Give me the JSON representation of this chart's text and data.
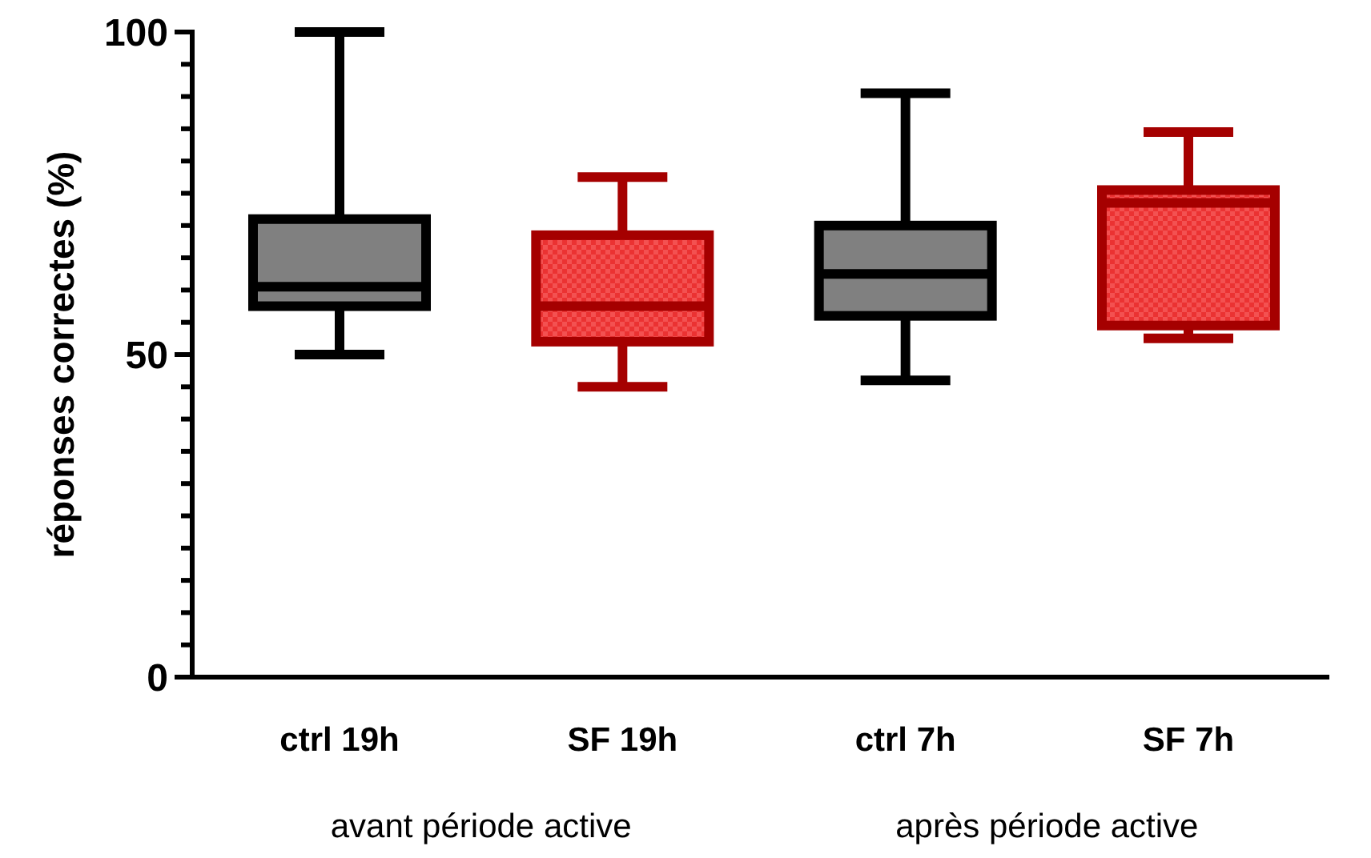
{
  "chart_data": {
    "type": "box",
    "ylabel": "réponses correctes (%)",
    "categories": [
      "ctrl 19h",
      "SF 19h",
      "ctrl 7h",
      "SF 7h"
    ],
    "boxes": [
      {
        "low": 50,
        "q1": 57.5,
        "median": 60.5,
        "q3": 71,
        "high": 100
      },
      {
        "low": 45,
        "q1": 52,
        "median": 57.5,
        "q3": 68.5,
        "high": 77.5
      },
      {
        "low": 46,
        "q1": 56,
        "median": 62.5,
        "q3": 70,
        "high": 90.5
      },
      {
        "low": 52.5,
        "q1": 54.5,
        "median": 73.5,
        "q3": 75.5,
        "high": 84.5
      }
    ],
    "colors": [
      "#000000",
      "#a50000",
      "#000000",
      "#a50000"
    ],
    "ylim": [
      0,
      100
    ],
    "yticks": [
      0,
      {
        "value": 5,
        "label": null
      },
      {
        "value": 10,
        "label": null
      },
      {
        "value": 15,
        "label": null
      },
      {
        "value": 20,
        "label": null
      },
      {
        "value": 25,
        "label": null
      },
      {
        "value": 30,
        "label": null
      },
      {
        "value": 35,
        "label": null
      },
      {
        "value": 40,
        "label": null
      },
      {
        "value": 45,
        "label": null
      },
      50,
      {
        "value": 55,
        "label": null
      },
      {
        "value": 60,
        "label": null
      },
      {
        "value": 65,
        "label": null
      },
      {
        "value": 70,
        "label": null
      },
      {
        "value": 75,
        "label": null
      },
      {
        "value": 80,
        "label": null
      },
      {
        "value": 85,
        "label": null
      },
      {
        "value": 90,
        "label": null
      },
      {
        "value": 95,
        "label": null
      },
      100
    ],
    "annotations": [
      "avant période active",
      "après période active"
    ]
  }
}
